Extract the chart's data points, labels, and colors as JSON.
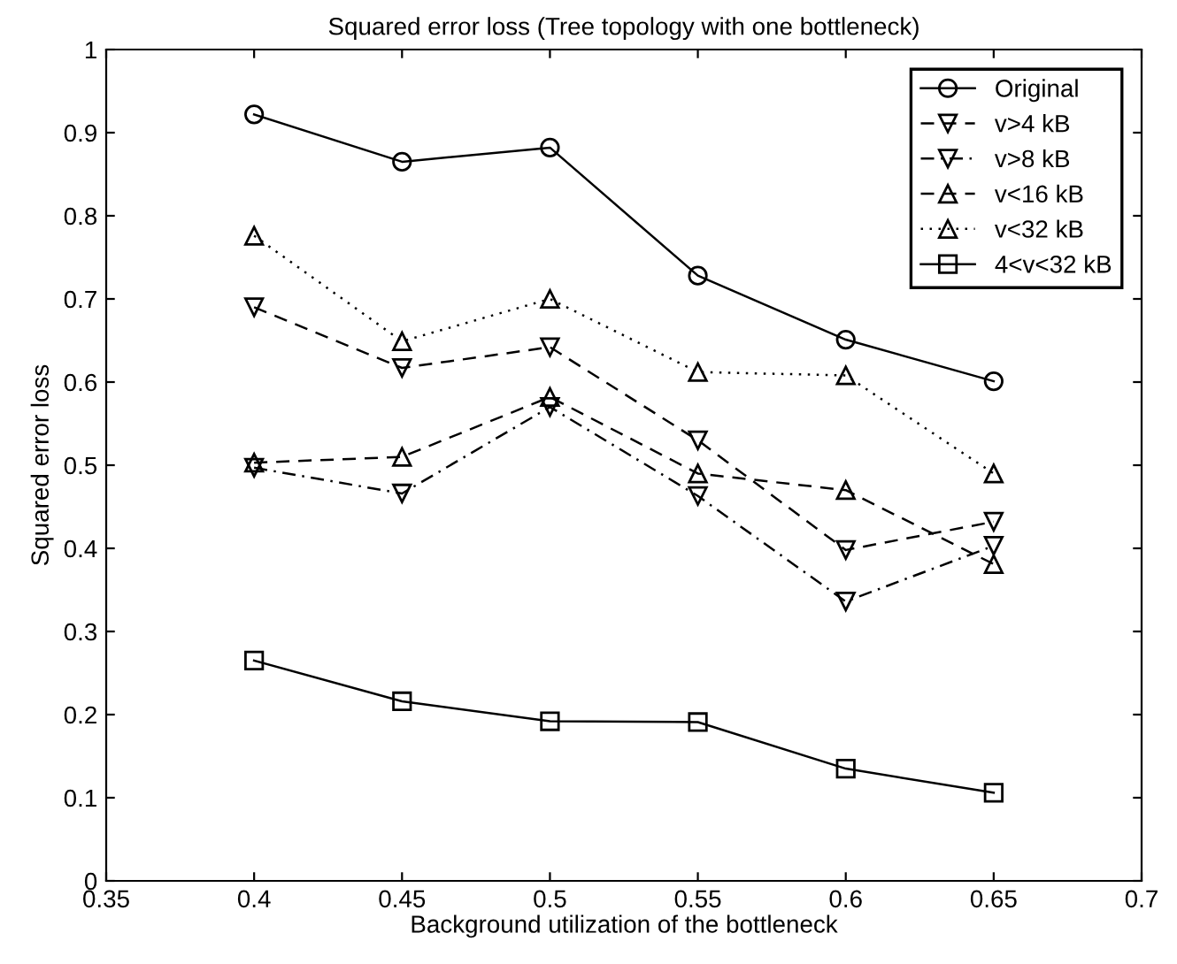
{
  "chart_data": {
    "type": "line",
    "title": "Squared error loss (Tree topology with one bottleneck)",
    "xlabel": "Background utilization of the bottleneck",
    "ylabel": "Squared error loss",
    "x": [
      0.4,
      0.45,
      0.5,
      0.55,
      0.6,
      0.65
    ],
    "series": [
      {
        "name": "Original",
        "color": "#000000",
        "marker": "circle",
        "line_style": "solid",
        "values": [
          0.922,
          0.865,
          0.882,
          0.728,
          0.651,
          0.601
        ]
      },
      {
        "name": "v>4 kB",
        "color": "#000000",
        "marker": "triangle_down",
        "line_style": "dashed",
        "values": [
          0.69,
          0.617,
          0.642,
          0.53,
          0.398,
          0.432
        ]
      },
      {
        "name": "v>8 kB",
        "color": "#000000",
        "marker": "triangle_down",
        "line_style": "dashdot",
        "values": [
          0.497,
          0.466,
          0.57,
          0.463,
          0.336,
          0.403
        ]
      },
      {
        "name": "v<16 kB",
        "color": "#000000",
        "marker": "triangle",
        "line_style": "dashed",
        "values": [
          0.503,
          0.51,
          0.582,
          0.49,
          0.47,
          0.381
        ]
      },
      {
        "name": "v<32 kB",
        "color": "#000000",
        "marker": "triangle",
        "line_style": "dotted",
        "values": [
          0.776,
          0.649,
          0.7,
          0.612,
          0.608,
          0.49
        ]
      },
      {
        "name": "4<v<32 kB",
        "color": "#000000",
        "marker": "square",
        "line_style": "solid",
        "values": [
          0.265,
          0.216,
          0.192,
          0.191,
          0.135,
          0.106
        ]
      }
    ],
    "xlim": [
      0.35,
      0.7
    ],
    "xticks": [
      0.35,
      0.4,
      0.45,
      0.5,
      0.55,
      0.6,
      0.65,
      0.7
    ],
    "ylim": [
      0,
      1
    ],
    "yticks": [
      0,
      0.1,
      0.2,
      0.3,
      0.4,
      0.5,
      0.6,
      0.7,
      0.8,
      0.9,
      1
    ],
    "grid": false,
    "legend": "top right"
  }
}
